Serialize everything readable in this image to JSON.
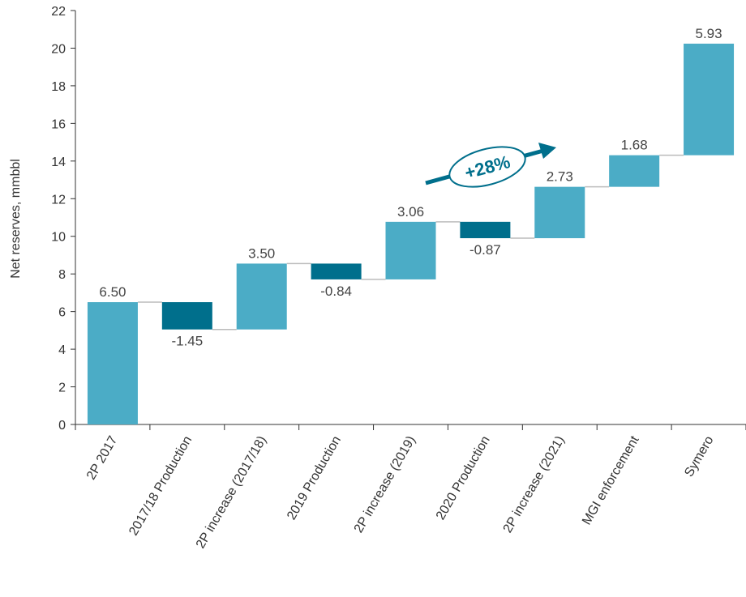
{
  "chart_data": {
    "type": "waterfall",
    "y_label": "Net reserves, mmbbl",
    "categories": [
      "2P 2017",
      "2017/18 Production",
      "2P increase (2017/18)",
      "2019 Production",
      "2P increase (2019)",
      "2020 Production",
      "2P increase (2021)",
      "MGI enforcement",
      "Symero"
    ],
    "values": [
      6.5,
      -1.45,
      3.5,
      -0.84,
      3.06,
      -0.87,
      2.73,
      1.68,
      5.93
    ],
    "value_labels": [
      "6.50",
      "-1.45",
      "3.50",
      "-0.84",
      "3.06",
      "-0.87",
      "2.73",
      "1.68",
      "5.93"
    ],
    "increase_color": "#4bacc6",
    "decrease_color": "#006f8c",
    "ylim": [
      0,
      22
    ],
    "yticks": [
      0,
      2,
      4,
      6,
      8,
      10,
      12,
      14,
      16,
      18,
      20,
      22
    ],
    "annotation": "+28%"
  }
}
